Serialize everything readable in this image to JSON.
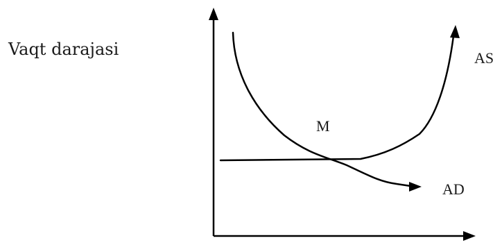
{
  "y_axis_label": "Vaqt darajasi",
  "x_axis_label": "",
  "curves": {
    "as_label": "AS",
    "ad_label": "AD"
  },
  "equilibrium_label": "M",
  "colors": {
    "ink": "#000000",
    "text": "#1a1a1a",
    "background": "#ffffff"
  }
}
